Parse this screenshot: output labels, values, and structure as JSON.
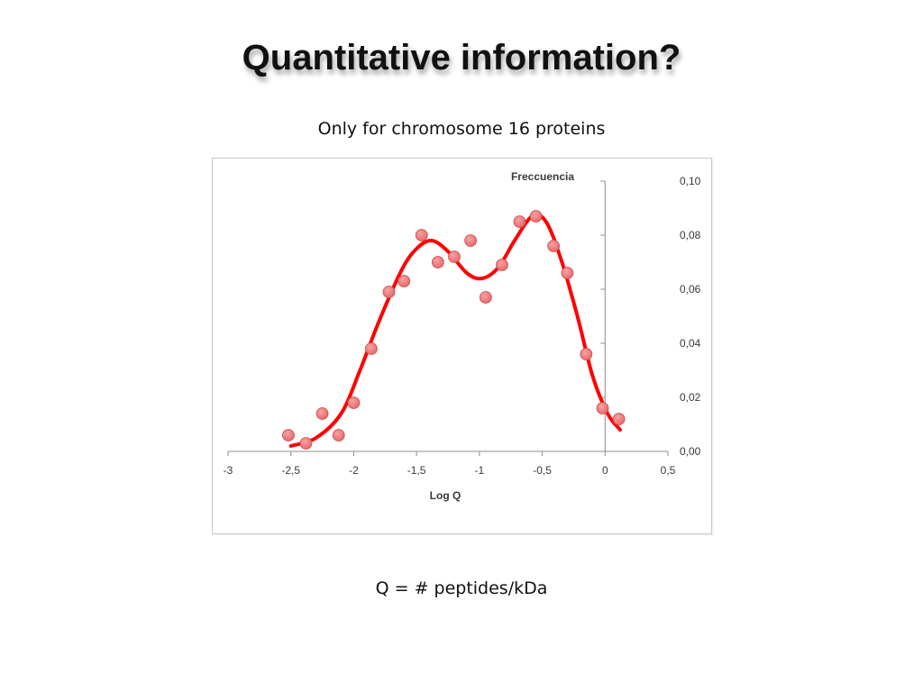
{
  "slide": {
    "title": "Quantitative information?",
    "subtitle": "Only for chromosome 16 proteins",
    "footnote": "Q = # peptides/kDa"
  },
  "chart_data": {
    "type": "scatter",
    "title": "Freccuencia",
    "xlabel": "Log Q",
    "ylabel": "",
    "xlim": [
      -3,
      0.5
    ],
    "ylim": [
      0,
      0.1
    ],
    "x_ticks": [
      "-3",
      "-2,5",
      "-2",
      "-1,5",
      "-1",
      "-0,5",
      "0",
      "0,5"
    ],
    "y_ticks": [
      "0,00",
      "0,02",
      "0,04",
      "0,06",
      "0,08",
      "0,10"
    ],
    "y_axis_position": "right",
    "grid": false,
    "colors": {
      "points": "#e8696b",
      "curve": "#ff0000"
    },
    "series": [
      {
        "type": "scatter",
        "points": [
          [
            -2.52,
            0.006
          ],
          [
            -2.38,
            0.003
          ],
          [
            -2.25,
            0.014
          ],
          [
            -2.12,
            0.006
          ],
          [
            -2.0,
            0.018
          ],
          [
            -1.86,
            0.038
          ],
          [
            -1.72,
            0.059
          ],
          [
            -1.6,
            0.063
          ],
          [
            -1.46,
            0.08
          ],
          [
            -1.33,
            0.07
          ],
          [
            -1.2,
            0.072
          ],
          [
            -1.07,
            0.078
          ],
          [
            -0.95,
            0.057
          ],
          [
            -0.82,
            0.069
          ],
          [
            -0.68,
            0.085
          ],
          [
            -0.55,
            0.087
          ],
          [
            -0.41,
            0.076
          ],
          [
            -0.3,
            0.066
          ],
          [
            -0.15,
            0.036
          ],
          [
            -0.02,
            0.016
          ],
          [
            0.11,
            0.012
          ]
        ]
      },
      {
        "type": "line",
        "smooth": true,
        "points": [
          [
            -2.5,
            0.002
          ],
          [
            -2.3,
            0.005
          ],
          [
            -2.1,
            0.014
          ],
          [
            -1.95,
            0.03
          ],
          [
            -1.8,
            0.048
          ],
          [
            -1.62,
            0.067
          ],
          [
            -1.5,
            0.075
          ],
          [
            -1.38,
            0.078
          ],
          [
            -1.25,
            0.074
          ],
          [
            -1.1,
            0.066
          ],
          [
            -0.98,
            0.064
          ],
          [
            -0.85,
            0.068
          ],
          [
            -0.72,
            0.078
          ],
          [
            -0.58,
            0.087
          ],
          [
            -0.47,
            0.085
          ],
          [
            -0.35,
            0.071
          ],
          [
            -0.22,
            0.05
          ],
          [
            -0.1,
            0.028
          ],
          [
            0.02,
            0.014
          ],
          [
            0.12,
            0.008
          ]
        ]
      }
    ]
  }
}
